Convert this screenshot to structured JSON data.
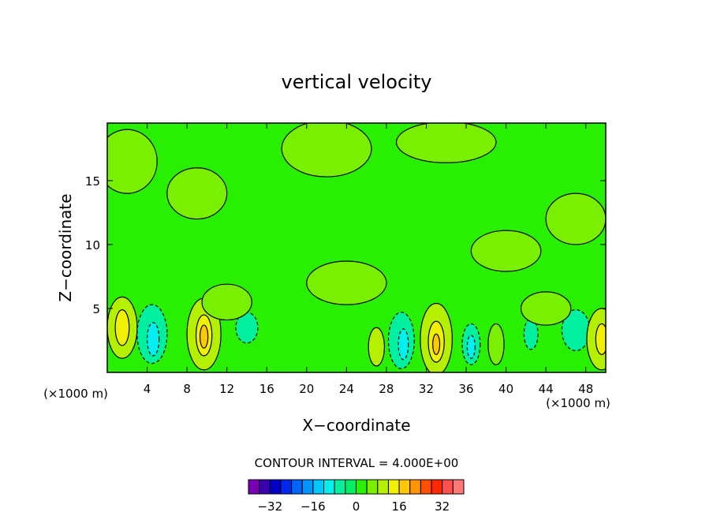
{
  "chart_data": {
    "type": "heatmap",
    "title": "vertical velocity",
    "xlabel": "X−coordinate",
    "ylabel": "Z−coordinate",
    "x_unit_left": "(×1000 m)",
    "x_unit_right": "(×1000 m)",
    "xlim": [
      0,
      50
    ],
    "ylim": [
      0,
      19.5
    ],
    "x_ticks": [
      4,
      8,
      12,
      16,
      20,
      24,
      28,
      32,
      36,
      40,
      44,
      48
    ],
    "y_ticks": [
      5,
      10,
      15
    ],
    "contour_interval_label": "CONTOUR INTERVAL = 4.000E+00",
    "colorbar": {
      "levels": [
        -40,
        -36,
        -32,
        -28,
        -24,
        -20,
        -16,
        -12,
        -8,
        -4,
        0,
        4,
        8,
        12,
        16,
        20,
        24,
        28,
        32,
        36,
        40
      ],
      "tick_values": [
        -32,
        -16,
        0,
        16,
        32
      ],
      "tick_labels": [
        "−32",
        "−16",
        "0",
        "16",
        "32"
      ],
      "colors": [
        "#7a00b4",
        "#3c00b4",
        "#0000c8",
        "#0028f0",
        "#0064ff",
        "#0096ff",
        "#00c8ff",
        "#00f0f0",
        "#00f0a0",
        "#00f064",
        "#28f000",
        "#78f000",
        "#b4f000",
        "#f0f000",
        "#ffc800",
        "#ff9600",
        "#ff5000",
        "#ff2800",
        "#ff5050",
        "#ff7878"
      ]
    },
    "background_level": [
      0,
      4
    ],
    "cells": [
      {
        "x": 1.5,
        "z": 3.5,
        "rx": 1.5,
        "rz": 2.4,
        "v": 9
      },
      {
        "x": 1.5,
        "z": 3.5,
        "rx": 0.7,
        "rz": 1.4,
        "v": 13
      },
      {
        "x": 4.5,
        "z": 3.0,
        "rx": 1.5,
        "rz": 2.3,
        "v": -7
      },
      {
        "x": 4.6,
        "z": 2.6,
        "rx": 0.6,
        "rz": 1.3,
        "v": -11
      },
      {
        "x": 9.7,
        "z": 3.0,
        "rx": 1.7,
        "rz": 2.8,
        "v": 9
      },
      {
        "x": 9.7,
        "z": 2.9,
        "rx": 0.8,
        "rz": 1.6,
        "v": 13
      },
      {
        "x": 9.7,
        "z": 2.8,
        "rx": 0.4,
        "rz": 0.9,
        "v": 17
      },
      {
        "x": 14.0,
        "z": 3.5,
        "rx": 1.1,
        "rz": 1.2,
        "v": -6
      },
      {
        "x": 27.0,
        "z": 2.0,
        "rx": 0.8,
        "rz": 1.5,
        "v": 8
      },
      {
        "x": 29.5,
        "z": 2.5,
        "rx": 1.3,
        "rz": 2.2,
        "v": -7
      },
      {
        "x": 29.7,
        "z": 2.2,
        "rx": 0.5,
        "rz": 1.2,
        "v": -11
      },
      {
        "x": 33.0,
        "z": 2.6,
        "rx": 1.6,
        "rz": 2.8,
        "v": 9
      },
      {
        "x": 33.0,
        "z": 2.4,
        "rx": 0.8,
        "rz": 1.6,
        "v": 13
      },
      {
        "x": 33.0,
        "z": 2.2,
        "rx": 0.35,
        "rz": 0.8,
        "v": 17
      },
      {
        "x": 36.5,
        "z": 2.2,
        "rx": 0.9,
        "rz": 1.6,
        "v": -6
      },
      {
        "x": 36.5,
        "z": 2.0,
        "rx": 0.4,
        "rz": 0.9,
        "v": -10
      },
      {
        "x": 39.0,
        "z": 2.2,
        "rx": 0.8,
        "rz": 1.6,
        "v": 7
      },
      {
        "x": 42.5,
        "z": 3.0,
        "rx": 0.7,
        "rz": 1.2,
        "v": -5
      },
      {
        "x": 47.0,
        "z": 3.3,
        "rx": 1.4,
        "rz": 1.6,
        "v": -6
      },
      {
        "x": 49.6,
        "z": 2.6,
        "rx": 1.5,
        "rz": 2.4,
        "v": 9
      },
      {
        "x": 49.6,
        "z": 2.6,
        "rx": 0.6,
        "rz": 1.2,
        "v": 13
      },
      {
        "x": 2.0,
        "z": 16.5,
        "rx": 3.0,
        "rz": 2.5,
        "v": 4.5
      },
      {
        "x": 9.0,
        "z": 14.0,
        "rx": 3.0,
        "rz": 2.0,
        "v": 4.5
      },
      {
        "x": 22.0,
        "z": 17.5,
        "rx": 4.5,
        "rz": 2.2,
        "v": 4.5
      },
      {
        "x": 34.0,
        "z": 18.0,
        "rx": 5.0,
        "rz": 1.6,
        "v": 4.5
      },
      {
        "x": 40.0,
        "z": 9.5,
        "rx": 3.5,
        "rz": 1.6,
        "v": 4.5
      },
      {
        "x": 47.0,
        "z": 12.0,
        "rx": 3.0,
        "rz": 2.0,
        "v": 4.5
      },
      {
        "x": 24.0,
        "z": 7.0,
        "rx": 4.0,
        "rz": 1.7,
        "v": 4.5
      },
      {
        "x": 12.0,
        "z": 5.5,
        "rx": 2.5,
        "rz": 1.4,
        "v": 4.5
      },
      {
        "x": 44.0,
        "z": 5.0,
        "rx": 2.5,
        "rz": 1.3,
        "v": 4.5
      }
    ]
  }
}
